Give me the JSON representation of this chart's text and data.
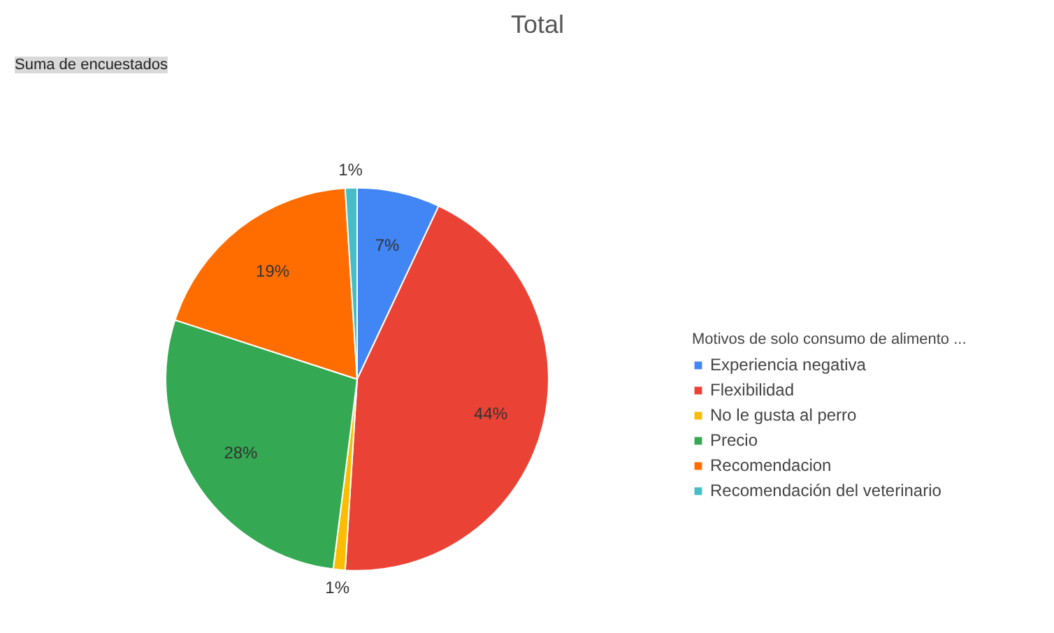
{
  "chart_data": {
    "type": "pie",
    "title": "Total",
    "legend_title": "Motivos de solo consumo de alimento ...",
    "annotations": [
      "Suma de encuestados"
    ],
    "categories": [
      "Experiencia negativa",
      "Flexibilidad",
      "No le gusta al perro",
      "Precio",
      "Recomendacion",
      "Recomendación del veterinario"
    ],
    "values": [
      7,
      44,
      1,
      28,
      19,
      1
    ],
    "colors": [
      "#4285f4",
      "#ea4335",
      "#fbbc04",
      "#34a853",
      "#ff6d01",
      "#46bdc6"
    ],
    "value_labels": [
      "7%",
      "44%",
      "1%",
      "28%",
      "19%",
      "1%"
    ],
    "legend": "right"
  }
}
